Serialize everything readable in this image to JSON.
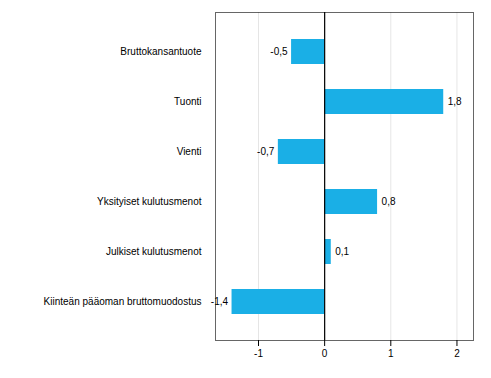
{
  "chart_data": {
    "type": "bar",
    "orientation": "horizontal",
    "categories": [
      "Kiinteän pääoman bruttomuodostus",
      "Julkiset kulutusmenot",
      "Yksityiset kulutusmenot",
      "Vienti",
      "Tuonti",
      "Bruttokansantuote"
    ],
    "values": [
      -1.4,
      0.1,
      0.8,
      -0.7,
      1.8,
      -0.5
    ],
    "value_labels": [
      "-1,4",
      "0,1",
      "0,8",
      "-0,7",
      "1,8",
      "-0,5"
    ],
    "color": "#1aafe6",
    "xlim": [
      -1.65,
      2.25
    ],
    "xticks": [
      -1,
      0,
      1,
      2
    ],
    "grid": true,
    "data_labels": true
  }
}
